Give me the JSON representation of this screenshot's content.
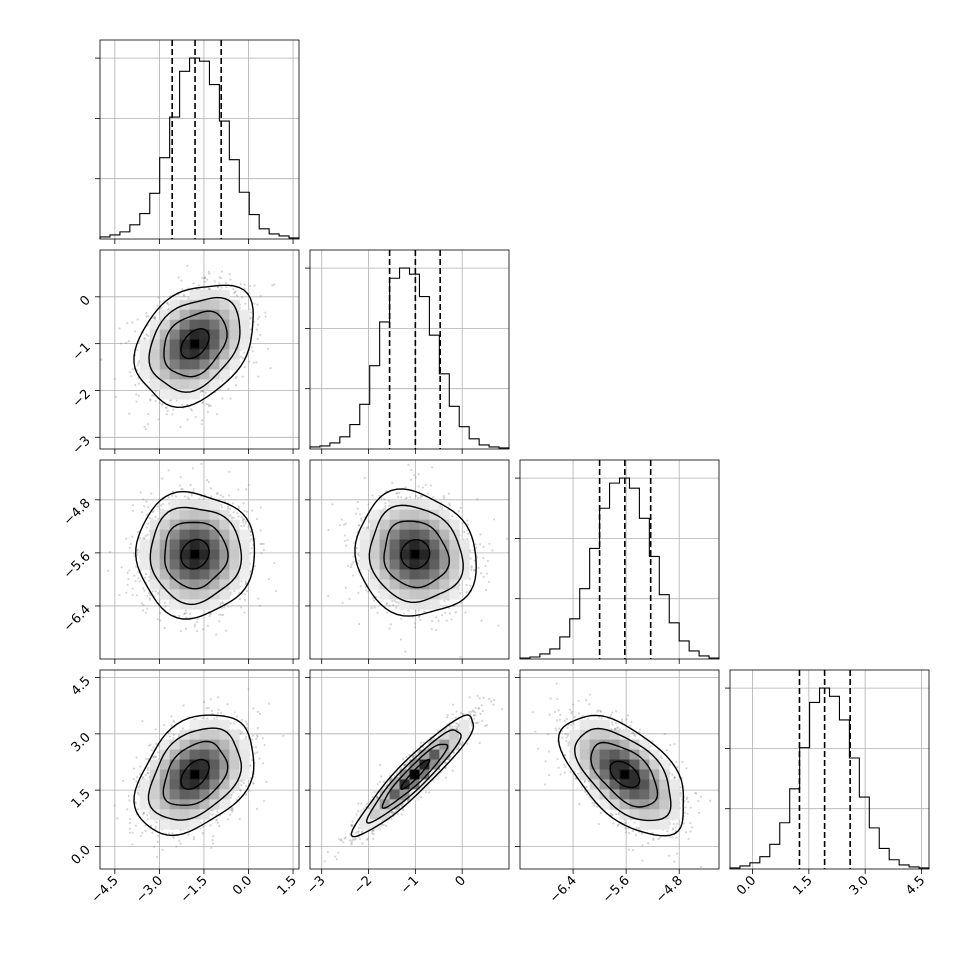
{
  "chart_data": {
    "type": "corner",
    "grid": true,
    "histogram_style": "step",
    "quantiles": [
      0.16,
      0.5,
      0.84
    ],
    "parameters": [
      {
        "range": [
          -5.0,
          1.7
        ],
        "ticks": [
          -4.5,
          -3.0,
          -1.5,
          0.0,
          1.5
        ],
        "tick_labels": [
          "−4.5",
          "−3.0",
          "−1.5",
          "0.0",
          "1.5"
        ],
        "quantile_values": [
          -2.57,
          -1.8,
          -0.92
        ],
        "hist_counts": [
          2,
          4,
          7,
          14,
          25,
          45,
          80,
          120,
          165,
          178,
          175,
          152,
          116,
          78,
          46,
          24,
          10,
          5,
          3,
          1
        ]
      },
      {
        "range": [
          -3.25,
          1.0
        ],
        "ticks": [
          -3,
          -2,
          -1,
          0
        ],
        "tick_labels": [
          "−3",
          "−2",
          "−1",
          "0"
        ],
        "quantile_values": [
          -1.55,
          -1.0,
          -0.47
        ],
        "hist_counts": [
          2,
          3,
          6,
          12,
          24,
          44,
          82,
          125,
          168,
          178,
          172,
          150,
          112,
          74,
          42,
          22,
          10,
          4,
          2,
          1
        ]
      },
      {
        "range": [
          -7.2,
          -4.2
        ],
        "ticks": [
          -6.4,
          -5.6,
          -4.8
        ],
        "tick_labels": [
          "−6.4",
          "−5.6",
          "−4.8"
        ],
        "quantile_values": [
          -6.0,
          -5.62,
          -5.23
        ],
        "hist_counts": [
          1,
          2,
          5,
          10,
          22,
          40,
          70,
          110,
          150,
          175,
          180,
          170,
          140,
          102,
          64,
          36,
          18,
          8,
          3,
          1
        ]
      },
      {
        "range": [
          -0.6,
          4.7
        ],
        "ticks": [
          0.0,
          1.5,
          3.0,
          4.5
        ],
        "tick_labels": [
          "0.0",
          "1.5",
          "3.0",
          "4.5"
        ],
        "quantile_values": [
          1.25,
          1.92,
          2.6
        ],
        "hist_counts": [
          1,
          3,
          6,
          12,
          24,
          45,
          78,
          118,
          162,
          176,
          168,
          145,
          108,
          70,
          40,
          20,
          9,
          4,
          2,
          1
        ]
      }
    ],
    "pairs": [
      {
        "row": 1,
        "col": 0,
        "mean": [
          -1.8,
          -1.0
        ],
        "sd": [
          0.85,
          0.55
        ],
        "rho": 0.3
      },
      {
        "row": 2,
        "col": 0,
        "mean": [
          -1.8,
          -5.62
        ],
        "sd": [
          0.85,
          0.4
        ],
        "rho": 0.0
      },
      {
        "row": 2,
        "col": 1,
        "mean": [
          -1.0,
          -5.62
        ],
        "sd": [
          0.55,
          0.4
        ],
        "rho": -0.1
      },
      {
        "row": 3,
        "col": 0,
        "mean": [
          -1.8,
          1.92
        ],
        "sd": [
          0.85,
          0.68
        ],
        "rho": 0.35
      },
      {
        "row": 3,
        "col": 1,
        "mean": [
          -1.0,
          1.92
        ],
        "sd": [
          0.55,
          0.68
        ],
        "rho": 0.93
      },
      {
        "row": 3,
        "col": 2,
        "mean": [
          -5.62,
          1.92
        ],
        "sd": [
          0.4,
          0.68
        ],
        "rho": -0.55
      }
    ]
  }
}
